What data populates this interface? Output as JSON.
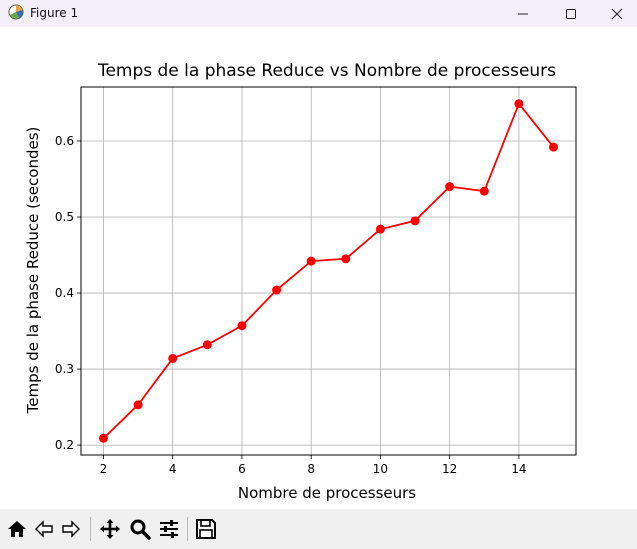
{
  "window": {
    "title": "Figure 1",
    "icons": [
      "app-icon",
      "minimize-icon",
      "maximize-icon",
      "close-icon"
    ]
  },
  "toolbar": {
    "buttons": [
      "home-icon",
      "back-icon",
      "forward-icon",
      "pan-icon",
      "zoom-icon",
      "configure-subplots-icon",
      "save-icon"
    ]
  },
  "colors": {
    "line": "#ff0000",
    "grid": "#b0b0b0",
    "titlebar": "#f3eef7",
    "toolbar": "#f0f0f0"
  },
  "chart_data": {
    "type": "line",
    "title": "Temps de la phase Reduce vs Nombre de processeurs",
    "xlabel": "Nombre de processeurs",
    "ylabel": "Temps de la phase Reduce (secondes)",
    "x": [
      2,
      3,
      4,
      5,
      6,
      7,
      8,
      9,
      10,
      11,
      12,
      13,
      14,
      15
    ],
    "series": [
      {
        "values": [
          0.209,
          0.253,
          0.314,
          0.332,
          0.357,
          0.404,
          0.442,
          0.445,
          0.484,
          0.495,
          0.54,
          0.534,
          0.649,
          0.592
        ],
        "color": "#ff0000",
        "marker": "circle"
      }
    ],
    "xlim": [
      1.35,
      15.65
    ],
    "ylim": [
      0.187,
      0.671
    ],
    "xticks": [
      "2",
      "4",
      "6",
      "8",
      "10",
      "12",
      "14"
    ],
    "yticks": [
      "0.2",
      "0.3",
      "0.4",
      "0.5",
      "0.6"
    ],
    "grid": true
  }
}
